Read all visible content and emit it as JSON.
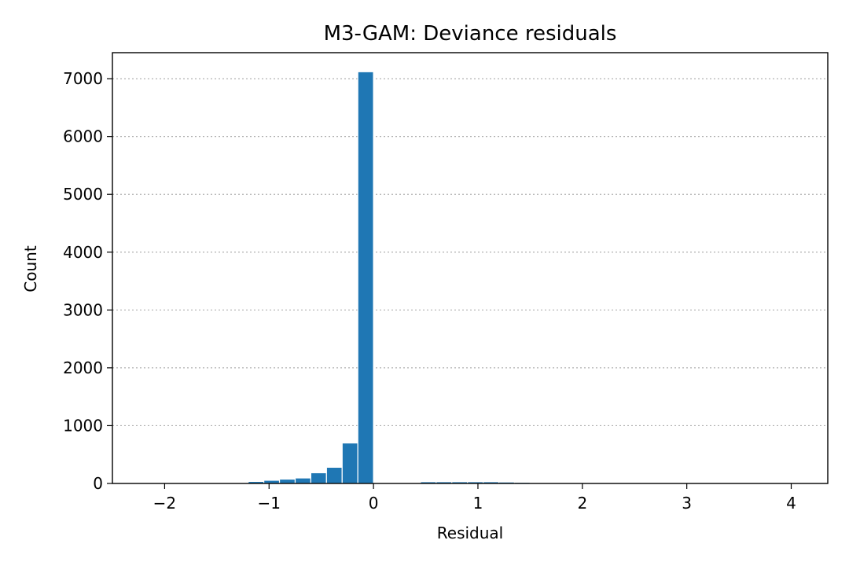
{
  "chart_data": {
    "type": "bar",
    "title": "M3-GAM: Deviance residuals",
    "xlabel": "Residual",
    "ylabel": "Count",
    "xlim": [
      -2.5,
      4.35
    ],
    "ylim": [
      0,
      7450
    ],
    "xticks": [
      -2,
      -1,
      0,
      1,
      2,
      3,
      4
    ],
    "xtick_labels": [
      "−2",
      "−1",
      "0",
      "1",
      "2",
      "3",
      "4"
    ],
    "yticks": [
      0,
      1000,
      2000,
      3000,
      4000,
      5000,
      6000,
      7000
    ],
    "ytick_labels": [
      "0",
      "1000",
      "2000",
      "3000",
      "4000",
      "5000",
      "6000",
      "7000"
    ],
    "grid": "y-dotted",
    "bar_color": "#1f77b4",
    "bin_width": 0.15,
    "bins": [
      {
        "x0": -1.35,
        "x1": -1.2,
        "count": 15
      },
      {
        "x0": -1.2,
        "x1": -1.05,
        "count": 35
      },
      {
        "x0": -1.05,
        "x1": -0.9,
        "count": 55
      },
      {
        "x0": -0.9,
        "x1": -0.75,
        "count": 75
      },
      {
        "x0": -0.75,
        "x1": -0.6,
        "count": 95
      },
      {
        "x0": -0.6,
        "x1": -0.45,
        "count": 185
      },
      {
        "x0": -0.45,
        "x1": -0.3,
        "count": 280
      },
      {
        "x0": -0.3,
        "x1": -0.15,
        "count": 700
      },
      {
        "x0": -0.15,
        "x1": 0.0,
        "count": 7120
      },
      {
        "x0": 0.3,
        "x1": 0.45,
        "count": 15
      },
      {
        "x0": 0.45,
        "x1": 0.6,
        "count": 30
      },
      {
        "x0": 0.6,
        "x1": 0.75,
        "count": 30
      },
      {
        "x0": 0.75,
        "x1": 0.9,
        "count": 30
      },
      {
        "x0": 0.9,
        "x1": 1.05,
        "count": 30
      },
      {
        "x0": 1.05,
        "x1": 1.2,
        "count": 30
      },
      {
        "x0": 1.2,
        "x1": 1.35,
        "count": 25
      },
      {
        "x0": 1.35,
        "x1": 1.5,
        "count": 20
      },
      {
        "x0": 1.5,
        "x1": 1.65,
        "count": 15
      },
      {
        "x0": 1.65,
        "x1": 1.8,
        "count": 10
      },
      {
        "x0": 1.8,
        "x1": 1.95,
        "count": 4
      },
      {
        "x0": 1.95,
        "x1": 2.1,
        "count": 3
      },
      {
        "x0": 2.1,
        "x1": 2.25,
        "count": 2
      },
      {
        "x0": 2.25,
        "x1": 2.4,
        "count": 2
      },
      {
        "x0": 2.4,
        "x1": 2.55,
        "count": 1
      },
      {
        "x0": 2.55,
        "x1": 2.7,
        "count": 1
      },
      {
        "x0": 2.7,
        "x1": 2.85,
        "count": 1
      },
      {
        "x0": 2.85,
        "x1": 3.0,
        "count": 1
      },
      {
        "x0": 3.0,
        "x1": 3.15,
        "count": 1
      },
      {
        "x0": 3.15,
        "x1": 3.3,
        "count": 1
      },
      {
        "x0": 3.3,
        "x1": 3.45,
        "count": 1
      },
      {
        "x0": 3.45,
        "x1": 3.6,
        "count": 1
      },
      {
        "x0": 3.6,
        "x1": 3.75,
        "count": 1
      },
      {
        "x0": 3.75,
        "x1": 3.9,
        "count": 1
      },
      {
        "x0": 3.9,
        "x1": 4.05,
        "count": 1
      },
      {
        "x0": 4.05,
        "x1": 4.2,
        "count": 1
      }
    ]
  }
}
